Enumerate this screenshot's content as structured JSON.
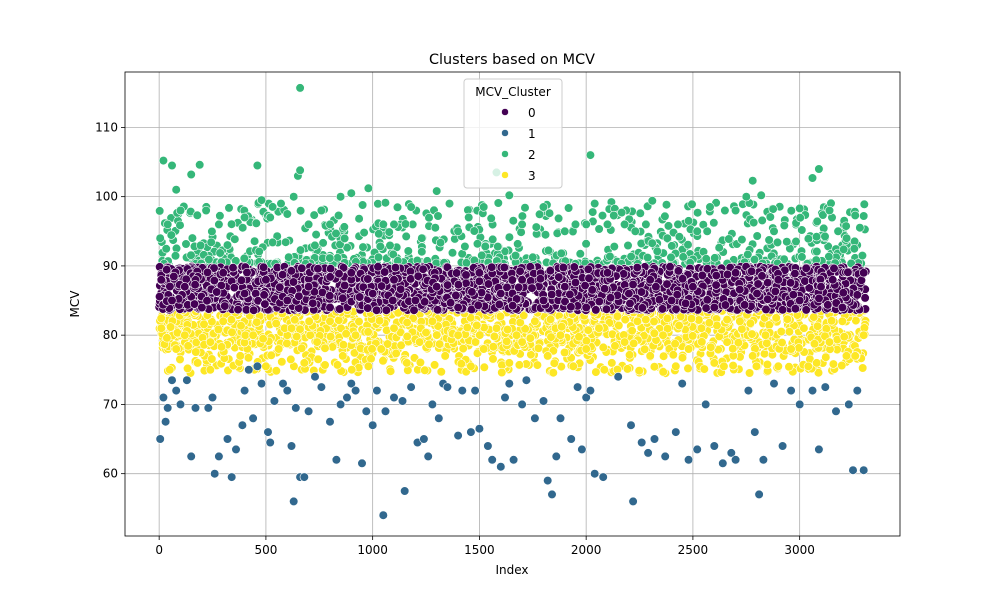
{
  "chart_data": {
    "type": "scatter",
    "title": "Clusters based on MCV",
    "xlabel": "Index",
    "ylabel": "MCV",
    "xlim": [
      -160,
      3470
    ],
    "ylim": [
      51,
      118
    ],
    "xticks": [
      0,
      500,
      1000,
      1500,
      2000,
      2500,
      3000
    ],
    "yticks": [
      60,
      70,
      80,
      90,
      100,
      110
    ],
    "grid": true,
    "legend": {
      "title": "MCV_Cluster",
      "placement": "upper center",
      "entries": [
        {
          "label": "0",
          "color": "#440154"
        },
        {
          "label": "1",
          "color": "#31688e"
        },
        {
          "label": "2",
          "color": "#35b779"
        },
        {
          "label": "3",
          "color": "#fde725"
        }
      ]
    },
    "series": [
      {
        "name": "0",
        "color": "#440154",
        "density": "very dense; roughly 3300 points",
        "x_range": [
          0,
          3310
        ],
        "y_range": [
          83.5,
          90
        ],
        "points": [
          [
            10,
            88
          ],
          [
            60,
            85
          ],
          [
            120,
            87
          ],
          [
            200,
            84
          ],
          [
            300,
            89
          ],
          [
            400,
            86
          ],
          [
            500,
            88
          ],
          [
            600,
            85
          ],
          [
            700,
            87
          ],
          [
            800,
            84
          ],
          [
            900,
            89
          ],
          [
            1000,
            86
          ],
          [
            1100,
            88
          ],
          [
            1200,
            85
          ],
          [
            1300,
            87
          ],
          [
            1400,
            84
          ],
          [
            1500,
            89
          ],
          [
            1600,
            86
          ],
          [
            1700,
            88
          ],
          [
            1800,
            85
          ],
          [
            1900,
            87
          ],
          [
            2000,
            84
          ],
          [
            2100,
            89
          ],
          [
            2200,
            86
          ],
          [
            2300,
            88
          ],
          [
            2400,
            85
          ],
          [
            2500,
            87
          ],
          [
            2600,
            84
          ],
          [
            2700,
            89
          ],
          [
            2800,
            86
          ],
          [
            2900,
            88
          ],
          [
            3000,
            85
          ],
          [
            3100,
            87
          ],
          [
            3200,
            84
          ],
          [
            3300,
            89
          ]
        ]
      },
      {
        "name": "1",
        "color": "#31688e",
        "points": [
          [
            5,
            65
          ],
          [
            20,
            71
          ],
          [
            30,
            67.5
          ],
          [
            40,
            69.5
          ],
          [
            60,
            73.5
          ],
          [
            80,
            72
          ],
          [
            100,
            70
          ],
          [
            130,
            73.5
          ],
          [
            150,
            62.5
          ],
          [
            170,
            69.5
          ],
          [
            230,
            69.5
          ],
          [
            250,
            71
          ],
          [
            260,
            60
          ],
          [
            280,
            62.5
          ],
          [
            320,
            65
          ],
          [
            340,
            59.5
          ],
          [
            360,
            63.5
          ],
          [
            390,
            67
          ],
          [
            400,
            72
          ],
          [
            420,
            75
          ],
          [
            440,
            68
          ],
          [
            460,
            75.5
          ],
          [
            480,
            73
          ],
          [
            510,
            66
          ],
          [
            520,
            64.5
          ],
          [
            540,
            70.5
          ],
          [
            580,
            73
          ],
          [
            600,
            72
          ],
          [
            620,
            64
          ],
          [
            630,
            56
          ],
          [
            640,
            69.5
          ],
          [
            660,
            59.5
          ],
          [
            680,
            59.5
          ],
          [
            700,
            69
          ],
          [
            730,
            74
          ],
          [
            760,
            72.5
          ],
          [
            800,
            67.5
          ],
          [
            830,
            62
          ],
          [
            850,
            70
          ],
          [
            880,
            71
          ],
          [
            900,
            73
          ],
          [
            920,
            72
          ],
          [
            950,
            61.5
          ],
          [
            970,
            69
          ],
          [
            1000,
            67
          ],
          [
            1020,
            72
          ],
          [
            1050,
            54
          ],
          [
            1060,
            69
          ],
          [
            1100,
            71
          ],
          [
            1140,
            70.5
          ],
          [
            1150,
            57.5
          ],
          [
            1180,
            72.5
          ],
          [
            1210,
            64.5
          ],
          [
            1240,
            65
          ],
          [
            1260,
            62.5
          ],
          [
            1280,
            70
          ],
          [
            1310,
            68
          ],
          [
            1330,
            73
          ],
          [
            1350,
            72.5
          ],
          [
            1400,
            65.5
          ],
          [
            1420,
            72
          ],
          [
            1460,
            66
          ],
          [
            1480,
            72
          ],
          [
            1500,
            66.5
          ],
          [
            1540,
            64
          ],
          [
            1560,
            62
          ],
          [
            1600,
            61
          ],
          [
            1620,
            71
          ],
          [
            1640,
            73
          ],
          [
            1660,
            62
          ],
          [
            1700,
            70
          ],
          [
            1720,
            73.5
          ],
          [
            1760,
            68
          ],
          [
            1800,
            70.5
          ],
          [
            1820,
            59
          ],
          [
            1840,
            57
          ],
          [
            1860,
            62.5
          ],
          [
            1880,
            68
          ],
          [
            1930,
            65
          ],
          [
            1960,
            72.5
          ],
          [
            1980,
            63.5
          ],
          [
            2000,
            71
          ],
          [
            2020,
            72
          ],
          [
            2040,
            60
          ],
          [
            2080,
            59.5
          ],
          [
            2150,
            74
          ],
          [
            2210,
            67
          ],
          [
            2220,
            56
          ],
          [
            2260,
            64.5
          ],
          [
            2290,
            63
          ],
          [
            2320,
            65
          ],
          [
            2370,
            62.5
          ],
          [
            2420,
            66
          ],
          [
            2450,
            73
          ],
          [
            2480,
            62
          ],
          [
            2520,
            63.5
          ],
          [
            2560,
            70
          ],
          [
            2600,
            64
          ],
          [
            2640,
            61.5
          ],
          [
            2680,
            63
          ],
          [
            2700,
            62
          ],
          [
            2760,
            72
          ],
          [
            2790,
            66
          ],
          [
            2810,
            57
          ],
          [
            2830,
            62
          ],
          [
            2880,
            73
          ],
          [
            2920,
            64
          ],
          [
            2960,
            72
          ],
          [
            3000,
            70
          ],
          [
            3060,
            72
          ],
          [
            3090,
            63.5
          ],
          [
            3120,
            72.5
          ],
          [
            3170,
            69
          ],
          [
            3230,
            70
          ],
          [
            3250,
            60.5
          ],
          [
            3270,
            72
          ],
          [
            3300,
            60.5
          ]
        ]
      },
      {
        "name": "2",
        "color": "#35b779",
        "density": "dense above 90; roughly 600 points",
        "points": [
          [
            5,
            94
          ],
          [
            20,
            105.2
          ],
          [
            40,
            96
          ],
          [
            60,
            104.5
          ],
          [
            80,
            101
          ],
          [
            100,
            98
          ],
          [
            150,
            103.2
          ],
          [
            190,
            104.6
          ],
          [
            220,
            98
          ],
          [
            280,
            96
          ],
          [
            320,
            93
          ],
          [
            400,
            97
          ],
          [
            460,
            104.5
          ],
          [
            480,
            99.5
          ],
          [
            520,
            97
          ],
          [
            600,
            97.5
          ],
          [
            630,
            100
          ],
          [
            650,
            103
          ],
          [
            660,
            103.8
          ],
          [
            660,
            115.7
          ],
          [
            700,
            96
          ],
          [
            760,
            98
          ],
          [
            800,
            96
          ],
          [
            850,
            100
          ],
          [
            900,
            100.5
          ],
          [
            980,
            101.2
          ],
          [
            1050,
            96
          ],
          [
            1100,
            96
          ],
          [
            1180,
            98.5
          ],
          [
            1230,
            94
          ],
          [
            1300,
            100.8
          ],
          [
            1360,
            99
          ],
          [
            1400,
            95
          ],
          [
            1450,
            97
          ],
          [
            1520,
            98.5
          ],
          [
            1580,
            103.5
          ],
          [
            1640,
            100.2
          ],
          [
            1700,
            96
          ],
          [
            1800,
            98.5
          ],
          [
            1900,
            95
          ],
          [
            1950,
            96
          ],
          [
            2000,
            96
          ],
          [
            2020,
            106
          ],
          [
            2040,
            99
          ],
          [
            2100,
            96
          ],
          [
            2180,
            96
          ],
          [
            2230,
            95
          ],
          [
            2280,
            96
          ],
          [
            2310,
            99.4
          ],
          [
            2380,
            94
          ],
          [
            2430,
            96
          ],
          [
            2480,
            96.5
          ],
          [
            2520,
            95
          ],
          [
            2580,
            98.5
          ],
          [
            2650,
            98
          ],
          [
            2700,
            98
          ],
          [
            2750,
            100
          ],
          [
            2780,
            102.3
          ],
          [
            2820,
            100.2
          ],
          [
            2880,
            95
          ],
          [
            2940,
            93.5
          ],
          [
            3000,
            98.3
          ],
          [
            3060,
            102.7
          ],
          [
            3090,
            104
          ],
          [
            3140,
            98
          ],
          [
            3180,
            95
          ],
          [
            3220,
            94
          ],
          [
            3260,
            97.3
          ],
          [
            3300,
            97.2
          ]
        ]
      },
      {
        "name": "3",
        "color": "#fde725",
        "density": "dense between 76 and 83.5; roughly 1300 points",
        "points": [
          [
            10,
            81
          ],
          [
            50,
            75
          ],
          [
            80,
            78
          ],
          [
            120,
            80
          ],
          [
            180,
            76
          ],
          [
            240,
            79
          ],
          [
            300,
            82
          ],
          [
            380,
            77
          ],
          [
            440,
            80
          ],
          [
            500,
            75.5
          ],
          [
            560,
            78
          ],
          [
            620,
            81
          ],
          [
            680,
            76
          ],
          [
            740,
            79
          ],
          [
            800,
            82
          ],
          [
            860,
            77
          ],
          [
            920,
            80
          ],
          [
            980,
            75.5
          ],
          [
            1040,
            78
          ],
          [
            1100,
            81
          ],
          [
            1160,
            76
          ],
          [
            1220,
            79
          ],
          [
            1280,
            82
          ],
          [
            1340,
            77
          ],
          [
            1400,
            80
          ],
          [
            1460,
            75.5
          ],
          [
            1520,
            78
          ],
          [
            1580,
            81
          ],
          [
            1640,
            76
          ],
          [
            1700,
            79
          ],
          [
            1760,
            82
          ],
          [
            1820,
            77
          ],
          [
            1880,
            80
          ],
          [
            1940,
            75.5
          ],
          [
            2000,
            78
          ],
          [
            2060,
            81
          ],
          [
            2120,
            76
          ],
          [
            2180,
            79
          ],
          [
            2240,
            82
          ],
          [
            2300,
            77
          ],
          [
            2360,
            80
          ],
          [
            2420,
            75.5
          ],
          [
            2480,
            78
          ],
          [
            2540,
            81
          ],
          [
            2600,
            76
          ],
          [
            2660,
            79
          ],
          [
            2720,
            82
          ],
          [
            2780,
            77
          ],
          [
            2840,
            80
          ],
          [
            2900,
            75.5
          ],
          [
            2960,
            78
          ],
          [
            3020,
            81
          ],
          [
            3080,
            76
          ],
          [
            3140,
            79
          ],
          [
            3200,
            82
          ],
          [
            3260,
            77
          ],
          [
            3300,
            80
          ]
        ]
      }
    ]
  }
}
